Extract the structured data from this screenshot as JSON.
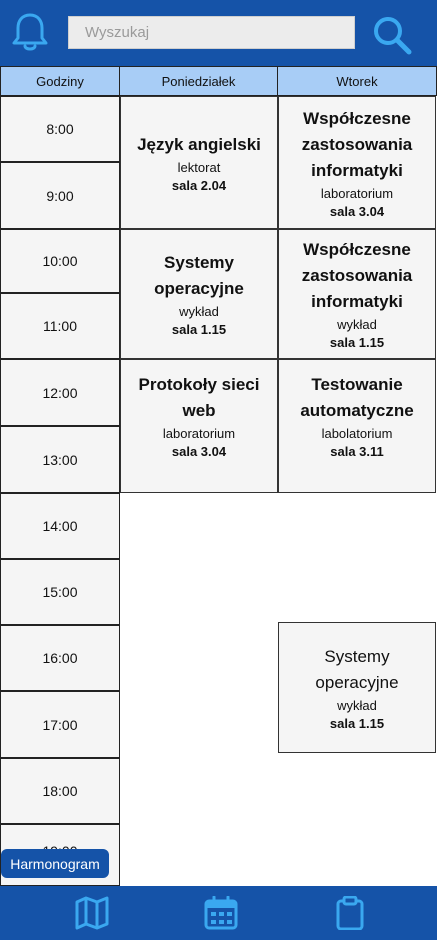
{
  "search": {
    "placeholder": "Wyszukaj"
  },
  "header": {
    "hours_label": "Godziny",
    "days": [
      "Poniedziałek",
      "Wtorek"
    ]
  },
  "hours": [
    "8:00",
    "9:00",
    "10:00",
    "11:00",
    "12:00",
    "13:00",
    "14:00",
    "15:00",
    "16:00",
    "17:00",
    "18:00",
    "19:00"
  ],
  "events": [
    {
      "day": "Poniedziałek",
      "title": "Język angielski",
      "type": "lektorat",
      "room": "sala 2.04"
    },
    {
      "day": "Poniedziałek",
      "title": "Systemy operacyjne",
      "type": "wykład",
      "room": "sala 1.15"
    },
    {
      "day": "Poniedziałek",
      "title": "Protokoły sieci web",
      "type": "laboratorium",
      "room": "sala 3.04"
    },
    {
      "day": "Wtorek",
      "title": "Współczesne zastosowania informatyki",
      "type": "laboratorium",
      "room": "sala 3.04"
    },
    {
      "day": "Wtorek",
      "title": "Współczesne zastosowania informatyki",
      "type": "wykład",
      "room": "sala 1.15"
    },
    {
      "day": "Wtorek",
      "title": "Testowanie automatyczne",
      "type": "labolatorium",
      "room": "sala 3.11"
    },
    {
      "day": "Wtorek",
      "title": "Systemy operacyjne",
      "type": "wykład",
      "room": "sala 1.15"
    }
  ],
  "harmonogram_label": "Harmonogram",
  "bottom_nav": [
    "map-icon",
    "calendar-icon",
    "clipboard-icon"
  ],
  "colors": {
    "primary": "#1553a8",
    "header_bg": "#a8cdf6",
    "icon": "#3aa8f0",
    "cell_bg": "#f5f5f5"
  }
}
